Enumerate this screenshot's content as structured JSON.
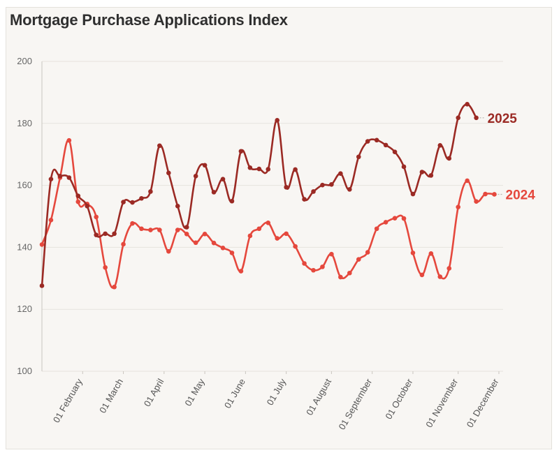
{
  "colors": {
    "s2025": "#9b2a24",
    "s2024": "#e5483d",
    "grid": "#e6e3de",
    "axis": "#c9c5bf"
  },
  "chart_data": {
    "type": "line",
    "title": "Mortgage Purchase Applications Index",
    "ylim": [
      100,
      200
    ],
    "yticks": [
      100,
      120,
      140,
      160,
      180,
      200
    ],
    "xlim": [
      0,
      58.6
    ],
    "xticks": [
      {
        "x": 4.5,
        "label": "01 February"
      },
      {
        "x": 9.0,
        "label": "01 March"
      },
      {
        "x": 13.5,
        "label": "01 April"
      },
      {
        "x": 18.0,
        "label": "01 May"
      },
      {
        "x": 22.5,
        "label": "01 June"
      },
      {
        "x": 27.0,
        "label": "01 July"
      },
      {
        "x": 32.0,
        "label": "01 August"
      },
      {
        "x": 36.5,
        "label": "01 September"
      },
      {
        "x": 41.0,
        "label": "01 October"
      },
      {
        "x": 46.0,
        "label": "01 November"
      },
      {
        "x": 50.5,
        "label": "01 December"
      }
    ],
    "grid": true,
    "series": [
      {
        "name": "2025",
        "values": [
          [
            0,
            127.6
          ],
          [
            1,
            162
          ],
          [
            2,
            163
          ],
          [
            3,
            162.5
          ],
          [
            4,
            156.6
          ],
          [
            5,
            153.3
          ],
          [
            6,
            144
          ],
          [
            7,
            144.4
          ],
          [
            8,
            144.4
          ],
          [
            9,
            154.6
          ],
          [
            10,
            154.5
          ],
          [
            11,
            155.8
          ],
          [
            12,
            158
          ],
          [
            13,
            172.8
          ],
          [
            14,
            164
          ],
          [
            15,
            153.3
          ],
          [
            16,
            146.5
          ],
          [
            17,
            163
          ],
          [
            18,
            166.5
          ],
          [
            19,
            157.8
          ],
          [
            20,
            162
          ],
          [
            21,
            154.9
          ],
          [
            22,
            171
          ],
          [
            23,
            165.7
          ],
          [
            24,
            165.3
          ],
          [
            25,
            165.2
          ],
          [
            26,
            181
          ],
          [
            27,
            159.4
          ],
          [
            28,
            165.1
          ],
          [
            29,
            155.5
          ],
          [
            30,
            158
          ],
          [
            31,
            160.1
          ],
          [
            32,
            160.3
          ],
          [
            33,
            163.8
          ],
          [
            34,
            158.7
          ],
          [
            35,
            169.2
          ],
          [
            36,
            174.2
          ],
          [
            37,
            174.6
          ],
          [
            38,
            173
          ],
          [
            39,
            170.8
          ],
          [
            40,
            166
          ],
          [
            41,
            157.2
          ],
          [
            42,
            164.3
          ],
          [
            43,
            163.2
          ],
          [
            44,
            172.9
          ],
          [
            45,
            168.7
          ],
          [
            46,
            181.8
          ],
          [
            47,
            186.2
          ],
          [
            48,
            181.8
          ]
        ]
      },
      {
        "name": "2024",
        "values": [
          [
            0,
            140.9
          ],
          [
            1,
            148.8
          ],
          [
            2,
            162.5
          ],
          [
            3,
            174.5
          ],
          [
            4,
            154.7
          ],
          [
            5,
            154
          ],
          [
            6,
            149.8
          ],
          [
            7,
            133.5
          ],
          [
            8,
            127.2
          ],
          [
            9,
            141
          ],
          [
            10,
            147.7
          ],
          [
            11,
            146
          ],
          [
            12,
            145.6
          ],
          [
            13,
            145.6
          ],
          [
            14,
            138.7
          ],
          [
            15,
            145.6
          ],
          [
            16,
            144.3
          ],
          [
            17,
            141.5
          ],
          [
            18,
            144.3
          ],
          [
            19,
            141.4
          ],
          [
            20,
            139.8
          ],
          [
            21,
            138.2
          ],
          [
            22,
            132.3
          ],
          [
            23,
            143.7
          ],
          [
            24,
            146
          ],
          [
            25,
            147.9
          ],
          [
            26,
            142.9
          ],
          [
            27,
            144.4
          ],
          [
            28,
            140.3
          ],
          [
            29,
            134.8
          ],
          [
            30,
            132.6
          ],
          [
            31,
            133.7
          ],
          [
            32,
            137.8
          ],
          [
            33,
            130.4
          ],
          [
            34,
            131.7
          ],
          [
            35,
            136.1
          ],
          [
            36,
            138.4
          ],
          [
            37,
            146
          ],
          [
            38,
            148.1
          ],
          [
            39,
            149.4
          ],
          [
            40,
            149.3
          ],
          [
            41,
            138.2
          ],
          [
            42,
            131.1
          ],
          [
            43,
            138
          ],
          [
            44,
            130.5
          ],
          [
            45,
            133.2
          ],
          [
            46,
            153
          ],
          [
            47,
            161.5
          ],
          [
            48,
            154.8
          ],
          [
            49,
            157.2
          ],
          [
            50,
            157.1
          ]
        ]
      }
    ]
  }
}
